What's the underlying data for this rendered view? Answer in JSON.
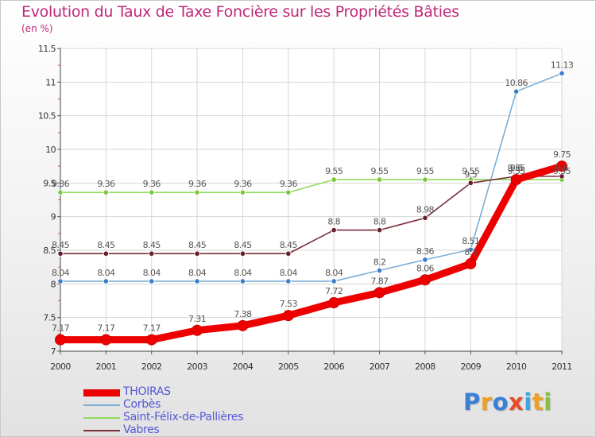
{
  "title": "Evolution du Taux de Taxe Foncière sur les Propriétés Bâties",
  "subtitle": "(en %)",
  "logo": {
    "letters": [
      {
        "ch": "P",
        "color": "#3a7fd8"
      },
      {
        "ch": "r",
        "color": "#f0a020"
      },
      {
        "ch": "o",
        "color": "#3a7fd8"
      },
      {
        "ch": "x",
        "color": "#e84a2a"
      },
      {
        "ch": "i",
        "color": "#3aa7e0"
      },
      {
        "ch": "t",
        "color": "#f0a020"
      },
      {
        "ch": "i",
        "color": "#88c040"
      }
    ]
  },
  "chart_data": {
    "type": "line",
    "title": "Evolution du Taux de Taxe Foncière sur les Propriétés Bâties",
    "ylabel": "(en %)",
    "xlabel": "",
    "x": [
      "2000",
      "2001",
      "2002",
      "2003",
      "2004",
      "2005",
      "2006",
      "2007",
      "2008",
      "2009",
      "2010",
      "2011"
    ],
    "ylim": [
      7,
      11.5
    ],
    "yticks": [
      "7",
      "7.5",
      "8",
      "8.5",
      "9",
      "9.5",
      "10",
      "10.5",
      "11",
      "11.5"
    ],
    "grid": true,
    "legend_position": "bottom-left",
    "series": [
      {
        "name": "THOIRAS",
        "color": "#ee0000",
        "point_color": "#ee0000",
        "emphasis": true,
        "values": [
          7.17,
          7.17,
          7.17,
          7.31,
          7.38,
          7.53,
          7.72,
          7.87,
          8.06,
          8.3,
          9.55,
          9.75
        ],
        "labels": [
          "7.17",
          "7.17",
          "7.17",
          "7.31",
          "7.38",
          "7.53",
          "7.72",
          "7.87",
          "8.06",
          "8.3",
          "9.55",
          "9.75"
        ]
      },
      {
        "name": "Corbès",
        "color": "#7aaed6",
        "point_color": "#3a7fc8",
        "emphasis": false,
        "values": [
          8.04,
          8.04,
          8.04,
          8.04,
          8.04,
          8.04,
          8.04,
          8.2,
          8.36,
          8.51,
          10.86,
          11.13
        ],
        "labels": [
          "8.04",
          "8.04",
          "8.04",
          "8.04",
          "8.04",
          "8.04",
          "8.04",
          "8.2",
          "8.36",
          "8.51",
          "10.86",
          "11.13"
        ]
      },
      {
        "name": "Saint-Félix-de-Pallières",
        "color": "#90dc5c",
        "point_color": "#7ac83a",
        "emphasis": false,
        "values": [
          9.36,
          9.36,
          9.36,
          9.36,
          9.36,
          9.36,
          9.55,
          9.55,
          9.55,
          9.55,
          9.55,
          9.55
        ],
        "labels": [
          "9.36",
          "9.36",
          "9.36",
          "9.36",
          "9.36",
          "9.36",
          "9.55",
          "9.55",
          "9.55",
          "9.55",
          "9.55",
          "9.55"
        ]
      },
      {
        "name": "Vabres",
        "color": "#7a2e3a",
        "point_color": "#6a1e2a",
        "emphasis": false,
        "values": [
          8.45,
          8.45,
          8.45,
          8.45,
          8.45,
          8.45,
          8.8,
          8.8,
          8.98,
          9.5,
          9.6,
          9.6
        ],
        "labels": [
          "8.45",
          "8.45",
          "8.45",
          "8.45",
          "8.45",
          "8.45",
          "8.8",
          "8.8",
          "8.98",
          "9.5",
          "9.6",
          "9.6"
        ]
      }
    ]
  }
}
